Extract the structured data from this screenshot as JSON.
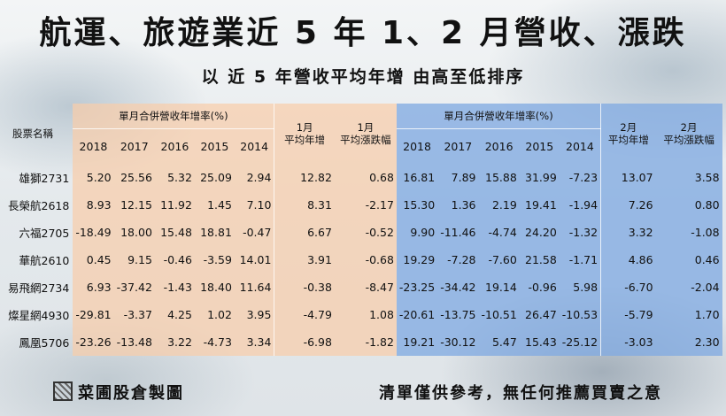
{
  "title": "航運、旅遊業近 5 年 1、2 月營收、漲跌",
  "subtitle": "以 近 5 年營收平均年增 由高至低排序",
  "table": {
    "name_header": "股票名稱",
    "jan_group": "單月合併營收年增率(%)",
    "feb_group": "單月合併營收年增率(%)",
    "years": [
      "2018",
      "2017",
      "2016",
      "2015",
      "2014"
    ],
    "jan_avg": [
      "1月",
      "平均年增"
    ],
    "jan_rise": [
      "1月",
      "平均漲跌幅"
    ],
    "feb_avg": [
      "2月",
      "平均年增"
    ],
    "feb_rise": [
      "2月",
      "平均漲跌幅"
    ],
    "rows": [
      {
        "name": "雄獅2731",
        "jan": [
          "5.20",
          "25.56",
          "5.32",
          "25.09",
          "2.94"
        ],
        "jan_avg": "12.82",
        "jan_rise": "0.68",
        "feb": [
          "16.81",
          "7.89",
          "15.88",
          "31.99",
          "-7.23"
        ],
        "feb_avg": "13.07",
        "feb_rise": "3.58"
      },
      {
        "name": "長榮航2618",
        "jan": [
          "8.93",
          "12.15",
          "11.92",
          "1.45",
          "7.10"
        ],
        "jan_avg": "8.31",
        "jan_rise": "-2.17",
        "feb": [
          "15.30",
          "1.36",
          "2.19",
          "19.41",
          "-1.94"
        ],
        "feb_avg": "7.26",
        "feb_rise": "0.80"
      },
      {
        "name": "六福2705",
        "jan": [
          "-18.49",
          "18.00",
          "15.48",
          "18.81",
          "-0.47"
        ],
        "jan_avg": "6.67",
        "jan_rise": "-0.52",
        "feb": [
          "9.90",
          "-11.46",
          "-4.74",
          "24.20",
          "-1.32"
        ],
        "feb_avg": "3.32",
        "feb_rise": "-1.08"
      },
      {
        "name": "華航2610",
        "jan": [
          "0.45",
          "9.15",
          "-0.46",
          "-3.59",
          "14.01"
        ],
        "jan_avg": "3.91",
        "jan_rise": "-0.68",
        "feb": [
          "19.29",
          "-7.28",
          "-7.60",
          "21.58",
          "-1.71"
        ],
        "feb_avg": "4.86",
        "feb_rise": "0.46"
      },
      {
        "name": "易飛網2734",
        "jan": [
          "6.93",
          "-37.42",
          "-1.43",
          "18.40",
          "11.64"
        ],
        "jan_avg": "-0.38",
        "jan_rise": "-8.47",
        "feb": [
          "-23.25",
          "-34.42",
          "19.14",
          "-0.96",
          "5.98"
        ],
        "feb_avg": "-6.70",
        "feb_rise": "-2.04"
      },
      {
        "name": "燦星網4930",
        "jan": [
          "-29.81",
          "-3.37",
          "4.25",
          "1.02",
          "3.95"
        ],
        "jan_avg": "-4.79",
        "jan_rise": "1.08",
        "feb": [
          "-20.61",
          "-13.75",
          "-10.51",
          "26.47",
          "-10.53"
        ],
        "feb_avg": "-5.79",
        "feb_rise": "1.70"
      },
      {
        "name": "鳳凰5706",
        "jan": [
          "-23.26",
          "-13.48",
          "3.22",
          "-4.73",
          "3.34"
        ],
        "jan_avg": "-6.98",
        "jan_rise": "-1.82",
        "feb": [
          "19.21",
          "-30.12",
          "5.47",
          "15.43",
          "-25.12"
        ],
        "feb_avg": "-3.03",
        "feb_rise": "2.30"
      }
    ]
  },
  "footer": {
    "source": "菜圃股倉製圖",
    "disclaimer": "清單僅供參考，無任何推薦買賣之意"
  },
  "colors": {
    "orange_panel": "#f8cdaa",
    "blue_panel": "#82aae1"
  }
}
